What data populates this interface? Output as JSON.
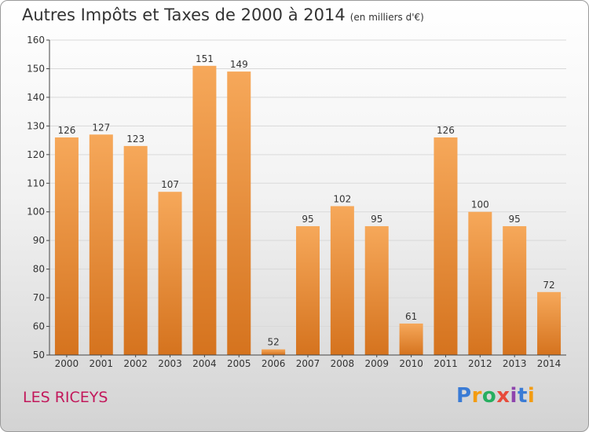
{
  "header": {
    "title": "Autres Impôts et Taxes de 2000 à 2014",
    "unit": "(en milliers d'€)"
  },
  "footer": {
    "commune": "LES RICEYS",
    "logo_letters": [
      "P",
      "r",
      "o",
      "x",
      "i",
      "t",
      "i"
    ]
  },
  "colors": {
    "bar_light": "#f6a85a",
    "bar_dark": "#d5731e",
    "grid": "#d9d9d9",
    "axis": "#444444",
    "commune_text": "#c2185b"
  },
  "chart_data": {
    "type": "bar",
    "title": "Autres Impôts et Taxes de 2000 à 2014",
    "subtitle": "(en milliers d'€)",
    "xlabel": "",
    "ylabel": "",
    "categories": [
      "2000",
      "2001",
      "2002",
      "2003",
      "2004",
      "2005",
      "2006",
      "2007",
      "2008",
      "2009",
      "2010",
      "2011",
      "2012",
      "2013",
      "2014"
    ],
    "values": [
      126,
      127,
      123,
      107,
      151,
      149,
      52,
      95,
      102,
      95,
      61,
      126,
      100,
      95,
      72
    ],
    "ylim": [
      50,
      160
    ],
    "yticks": [
      50,
      60,
      70,
      80,
      90,
      100,
      110,
      120,
      130,
      140,
      150,
      160
    ],
    "grid": true,
    "data_labels": true
  }
}
